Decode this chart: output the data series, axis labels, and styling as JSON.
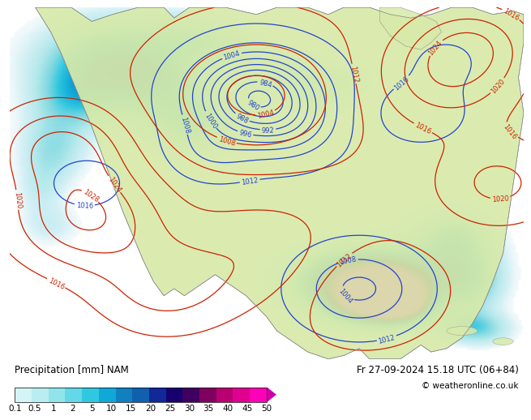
{
  "title_left": "Precipitation [mm] NAM",
  "title_right": "Fr 27-09-2024 15.18 UTC (06+84)",
  "copyright": "© weatheronline.co.uk",
  "colorbar_ticks": [
    "0.1",
    "0.5",
    "1",
    "2",
    "5",
    "10",
    "15",
    "20",
    "25",
    "30",
    "35",
    "40",
    "45",
    "50"
  ],
  "colorbar_colors": [
    "#d4f5f5",
    "#b8eef0",
    "#90e5ea",
    "#62d8e8",
    "#30c8e0",
    "#10a8d8",
    "#1080c0",
    "#1060b0",
    "#102898",
    "#180070",
    "#400060",
    "#800060",
    "#b80070",
    "#e00090",
    "#ff00b8"
  ],
  "ocean_color": "#e8f0f8",
  "land_color": "#d8eaaa",
  "border_color": "#888888",
  "contour_blue": "#2244cc",
  "contour_red": "#cc2200",
  "precip_light": "#a0e8f0",
  "precip_mid": "#40b8d8",
  "precip_dark": "#1050a0",
  "precip_deep": "#080048",
  "bar_bg": "#ffffff",
  "font_color": "#000000",
  "label_fs": 8.5,
  "tick_fs": 7.5,
  "copy_fs": 7.5
}
